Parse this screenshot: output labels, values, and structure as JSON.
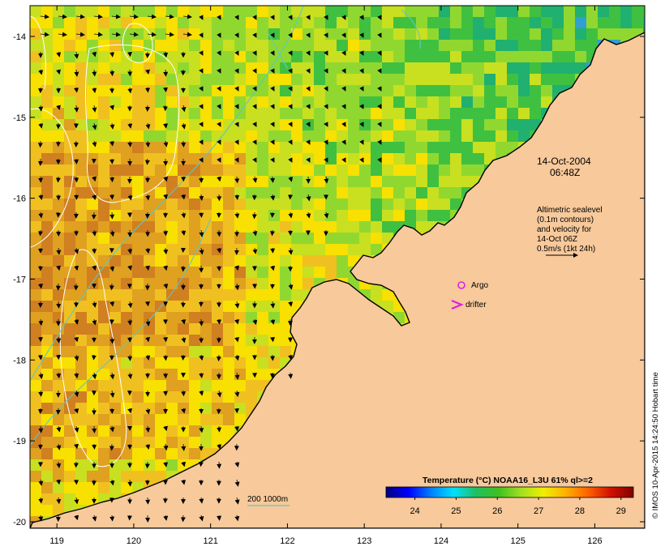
{
  "map": {
    "lon_range": [
      118.65,
      126.65
    ],
    "lat_range": [
      -20.08,
      -13.62
    ],
    "x_ticks": [
      119,
      120,
      121,
      122,
      123,
      124,
      125,
      126
    ],
    "y_ticks": [
      -14,
      -15,
      -16,
      -17,
      -18,
      -19,
      -20
    ],
    "x_tick_labels": [
      "119",
      "120",
      "121",
      "122",
      "123",
      "124",
      "125",
      "126"
    ],
    "y_tick_labels": [
      "-14",
      "-15",
      "-16",
      "-17",
      "-18",
      "-19",
      "-20"
    ],
    "colors": {
      "land": "#f7c99b",
      "coast": "#000000",
      "isobath": "#5fc7c0",
      "sealevel_contour": "#ffffff",
      "arrows": "#000000",
      "argo": "#e020e0",
      "drifter": "#e020e0"
    }
  },
  "annotations": {
    "date_line1": "14-Oct-2004",
    "date_line2": "06:48Z",
    "legend_lines": [
      "Altimetric sealevel",
      "(0.1m contours)",
      "and velocity for",
      "14-Oct 06Z",
      "0.5m/s (1kt 24h)"
    ],
    "argo_label": "Argo",
    "drifter_label": "drifter",
    "isobath_label": "200  1000m",
    "credit": "© IMOS 10-Apr-2015 14:24:50 Hobart time"
  },
  "colorbar": {
    "title": "Temperature (°C) NOAA16_L3U 61% ql>=2",
    "min": 23.3,
    "max": 29.3,
    "tick_values": [
      24,
      25,
      26,
      27,
      28,
      29
    ],
    "tick_labels": [
      "24",
      "25",
      "26",
      "27",
      "28",
      "29"
    ],
    "stops": [
      "#00007f",
      "#0000ff",
      "#0080ff",
      "#00e0ff",
      "#20c060",
      "#40c020",
      "#a0e020",
      "#f0f000",
      "#ffb000",
      "#ff6000",
      "#d01000",
      "#800000"
    ]
  }
}
